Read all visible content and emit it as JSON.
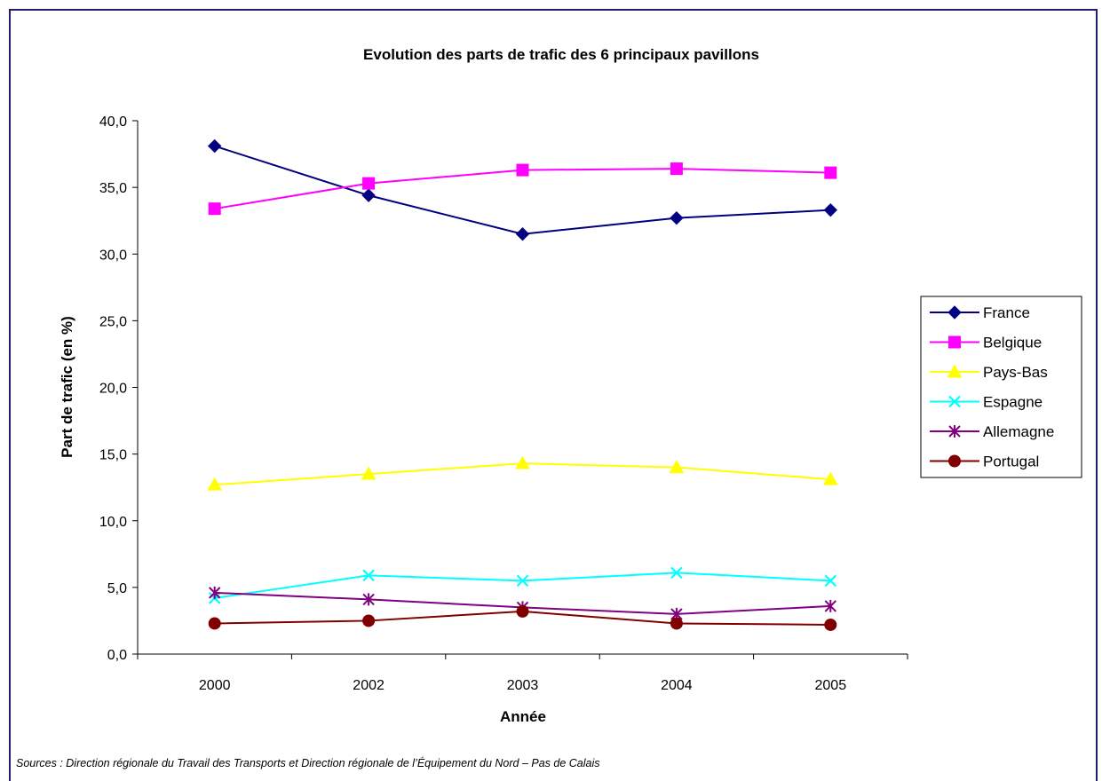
{
  "chart_data": {
    "type": "line",
    "title": "Evolution des parts de trafic des 6 principaux pavillons",
    "xlabel": "Année",
    "ylabel": "Part de trafic (en %)",
    "categories": [
      "2000",
      "2002",
      "2003",
      "2004",
      "2005"
    ],
    "ylim": [
      0,
      40
    ],
    "y_ticks": [
      "0,0",
      "5,0",
      "10,0",
      "15,0",
      "20,0",
      "25,0",
      "30,0",
      "35,0",
      "40,0"
    ],
    "legend_position": "right",
    "series": [
      {
        "name": "France",
        "color": "#000080",
        "marker": "diamond",
        "values": [
          38.1,
          34.4,
          31.5,
          32.7,
          33.3
        ]
      },
      {
        "name": "Belgique",
        "color": "#ff00ff",
        "marker": "square",
        "values": [
          33.4,
          35.3,
          36.3,
          36.4,
          36.1
        ]
      },
      {
        "name": "Pays-Bas",
        "color": "#ffff00",
        "marker": "triangle",
        "values": [
          12.7,
          13.5,
          14.3,
          14.0,
          13.1
        ]
      },
      {
        "name": "Espagne",
        "color": "#00ffff",
        "marker": "x",
        "values": [
          4.2,
          5.9,
          5.5,
          6.1,
          5.5
        ]
      },
      {
        "name": "Allemagne",
        "color": "#800080",
        "marker": "star",
        "values": [
          4.6,
          4.1,
          3.5,
          3.0,
          3.6
        ]
      },
      {
        "name": "Portugal",
        "color": "#800000",
        "marker": "circle",
        "values": [
          2.3,
          2.5,
          3.2,
          2.3,
          2.2
        ]
      }
    ]
  },
  "source_note": "Sources : Direction régionale du Travail des Transports et Direction régionale de l’Équipement du  Nord – Pas de Calais"
}
